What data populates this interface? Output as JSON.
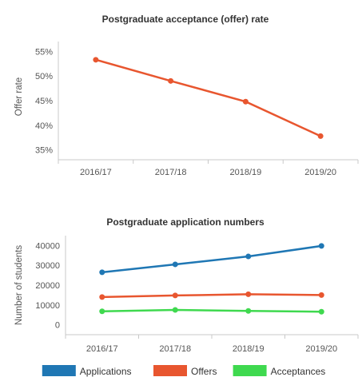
{
  "chart_data": [
    {
      "type": "line",
      "title": "Postgraduate acceptance (offer) rate",
      "xlabel": "",
      "ylabel": "Offer rate",
      "categories": [
        "2016/17",
        "2017/18",
        "2018/19",
        "2019/20"
      ],
      "yticks": [
        "35%",
        "40%",
        "45%",
        "50%",
        "55%"
      ],
      "ylim": [
        33,
        57
      ],
      "grid": false,
      "series": [
        {
          "values": [
            53.3,
            49.0,
            44.8,
            37.8
          ],
          "color": "#e8562f"
        }
      ]
    },
    {
      "type": "line",
      "title": "Postgraduate application numbers",
      "xlabel": "",
      "ylabel": "Number of students",
      "categories": [
        "2016/17",
        "2017/18",
        "2018/19",
        "2019/20"
      ],
      "yticks": [
        "0",
        "10000",
        "20000",
        "30000",
        "40000"
      ],
      "ylim": [
        -5000,
        45000
      ],
      "grid": false,
      "legend": "bottom",
      "series": [
        {
          "name": "Applications",
          "values": [
            26500,
            30500,
            34500,
            39800
          ],
          "color": "#1f77b4"
        },
        {
          "name": "Offers",
          "values": [
            14000,
            14800,
            15400,
            15000
          ],
          "color": "#e8562f"
        },
        {
          "name": "Acceptances",
          "values": [
            6800,
            7500,
            7000,
            6600
          ],
          "color": "#3fd94f"
        }
      ]
    }
  ]
}
